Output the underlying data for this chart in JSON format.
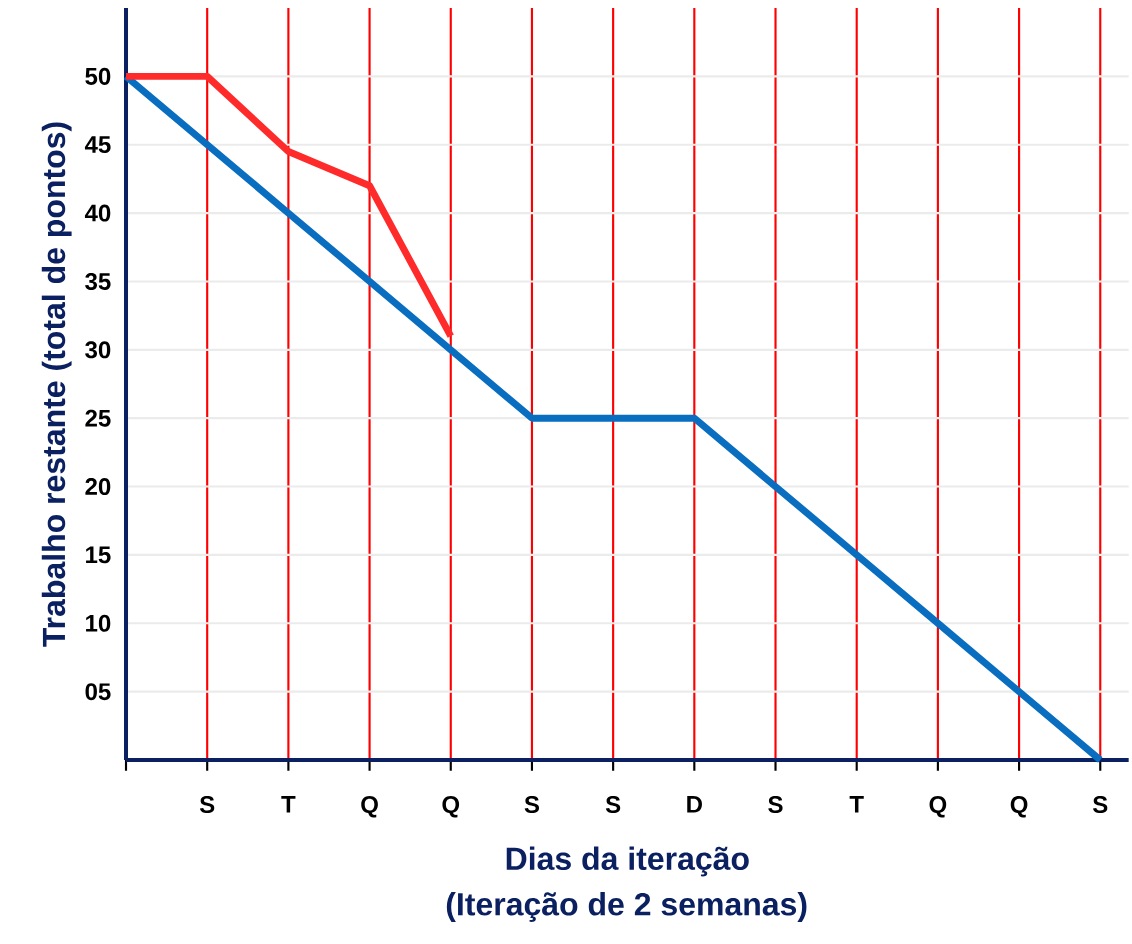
{
  "chart_data": {
    "type": "line",
    "ylabel": "Trabalho restante (total de pontos)",
    "xlabel": "Dias da iteração",
    "annotations": [
      "(Iteração de 2 semanas)"
    ],
    "categories": [
      null,
      "S",
      "T",
      "Q",
      "Q",
      "S",
      "S",
      "D",
      "S",
      "T",
      "Q",
      "Q",
      "S"
    ],
    "ylim": [
      0,
      55
    ],
    "yticks": [
      {
        "value": 5,
        "label": "05"
      },
      10,
      15,
      20,
      25,
      30,
      35,
      40,
      45,
      50
    ],
    "grid": true,
    "marker": "none",
    "line_style": "solid",
    "series": [
      {
        "color": "#0a6ec0",
        "values": [
          50,
          45,
          40,
          35,
          30,
          25,
          25,
          25,
          20,
          15,
          10,
          5,
          0
        ]
      },
      {
        "color": "#ff2a2a",
        "values": [
          50,
          50,
          44.5,
          42,
          31,
          null,
          null,
          null,
          null,
          null,
          null,
          null,
          null
        ]
      }
    ]
  }
}
